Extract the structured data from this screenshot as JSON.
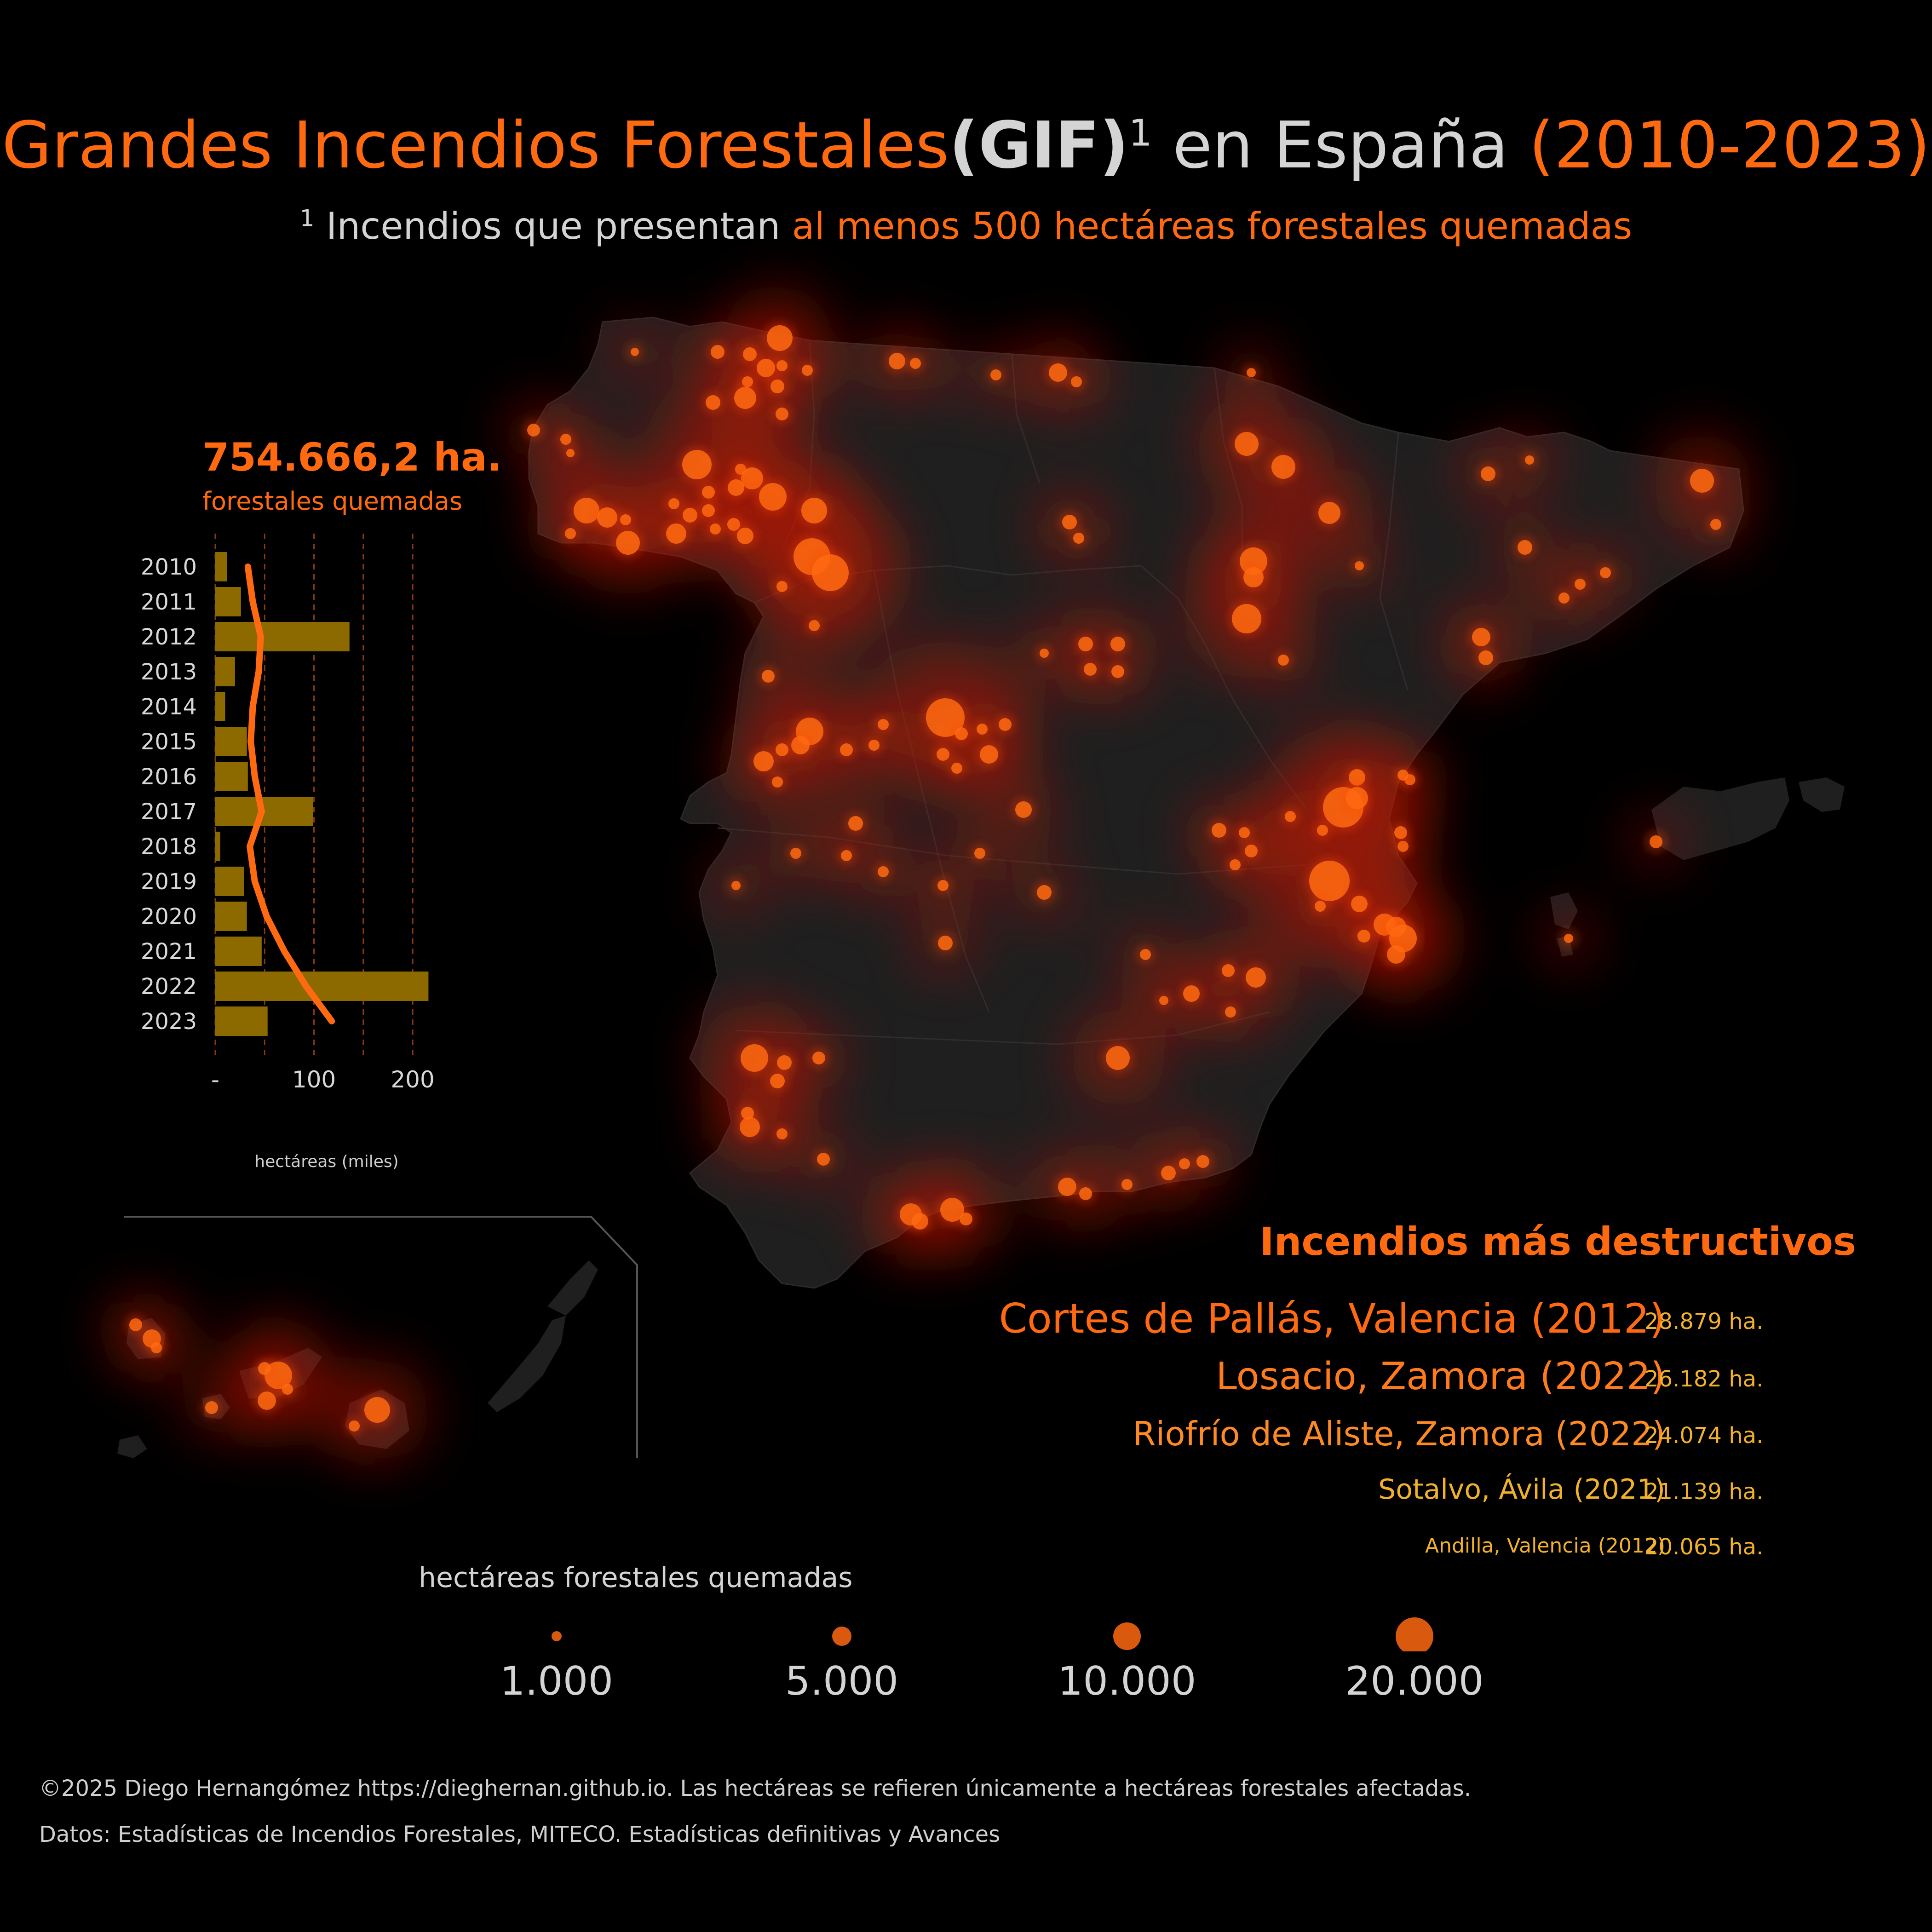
{
  "title": {
    "part1": "Grandes Incendios Forestales",
    "part2": "(GIF)",
    "sup": "1",
    "part3": " en España ",
    "part4": "(2010-2023)"
  },
  "subtitle": {
    "sup": "1",
    "part1": " Incendios que presentan ",
    "part2": "al menos 500 hectáreas forestales quemadas"
  },
  "total": {
    "value": "754.666,2 ha.",
    "label": "forestales quemadas"
  },
  "chart_data": {
    "type": "bar",
    "orientation": "horizontal",
    "categories": [
      "2010",
      "2011",
      "2012",
      "2013",
      "2014",
      "2015",
      "2016",
      "2017",
      "2018",
      "2019",
      "2020",
      "2021",
      "2022",
      "2023"
    ],
    "series": [
      {
        "values": [
          12,
          26,
          136,
          20,
          10,
          32,
          33,
          99,
          5,
          29,
          32,
          47,
          216,
          53
        ]
      }
    ],
    "trend": [
      33,
      38,
      46,
      44,
      38,
      36,
      40,
      47,
      35,
      40,
      52,
      70,
      92,
      118
    ],
    "xticks": [
      "-",
      "100",
      "200"
    ],
    "xlim": [
      0,
      220
    ],
    "xlabel": "hectáreas (miles)",
    "bar_color": "#8c6a00",
    "trend_color": "#ff6a10",
    "grid": "dashed vertical"
  },
  "destructive": {
    "title": "Incendios más destructivos",
    "items": [
      {
        "name": "Cortes de Pallás, Valencia (2012)",
        "value": "28.879 ha."
      },
      {
        "name": "Losacio, Zamora (2022)",
        "value": "26.182 ha."
      },
      {
        "name": "Riofrío de Aliste, Zamora (2022)",
        "value": "24.074 ha."
      },
      {
        "name": "Sotalvo, Ávila (2021)",
        "value": "21.139 ha."
      },
      {
        "name": "Andilla, Valencia (2012)",
        "value": "20.065 ha."
      }
    ]
  },
  "legend": {
    "title": "hectáreas forestales quemadas",
    "items": [
      "1.000",
      "5.000",
      "10.000",
      "20.000"
    ]
  },
  "colors": {
    "accent": "#ff6a10",
    "gold": "#f2b12a",
    "land": "#1f1f1f",
    "background": "#000000"
  },
  "footer": {
    "credit": "©2025 Diego Hernangómez https://dieghernan.github.io. Las hectáreas se refieren únicamente a hectáreas forestales afectadas.",
    "source": "Datos: Estadísticas de Incendios Forestales, MITECO. Estadísticas definitivas y Avances"
  }
}
